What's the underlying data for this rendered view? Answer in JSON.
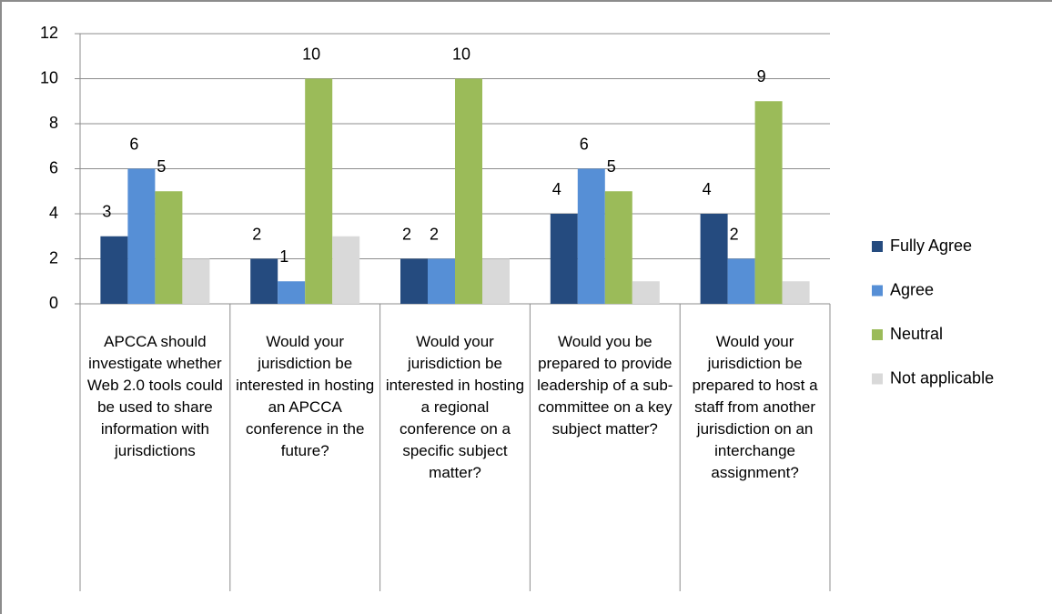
{
  "chart_data": {
    "type": "bar",
    "categories": [
      "APCCA should investigate whether Web 2.0 tools could be used to share information with jurisdictions",
      "Would your jurisdiction be interested in hosting an APCCA conference in the future?",
      "Would your jurisdiction be interested in hosting a regional conference on a specific subject matter?",
      "Would you be prepared to provide leadership of a sub-committee on a key subject matter?",
      "Would your jurisdiction be prepared to host a staff from another jurisdiction on an interchange assignment?"
    ],
    "series": [
      {
        "name": "Fully Agree",
        "color": "#254b7f",
        "values": [
          3,
          2,
          2,
          4,
          4
        ],
        "data_labels": true
      },
      {
        "name": "Agree",
        "color": "#568fd6",
        "values": [
          6,
          1,
          2,
          6,
          2
        ],
        "data_labels": true
      },
      {
        "name": "Neutral",
        "color": "#9bbb59",
        "values": [
          5,
          10,
          10,
          5,
          9
        ],
        "data_labels": true
      },
      {
        "name": "Not applicable",
        "color": "#d9d9d9",
        "values": [
          2,
          3,
          2,
          1,
          1
        ],
        "data_labels": false
      }
    ],
    "ylim": [
      0,
      12
    ],
    "yticks": [
      0,
      2,
      4,
      6,
      8,
      10,
      12
    ],
    "grid": true,
    "legend": "right"
  }
}
